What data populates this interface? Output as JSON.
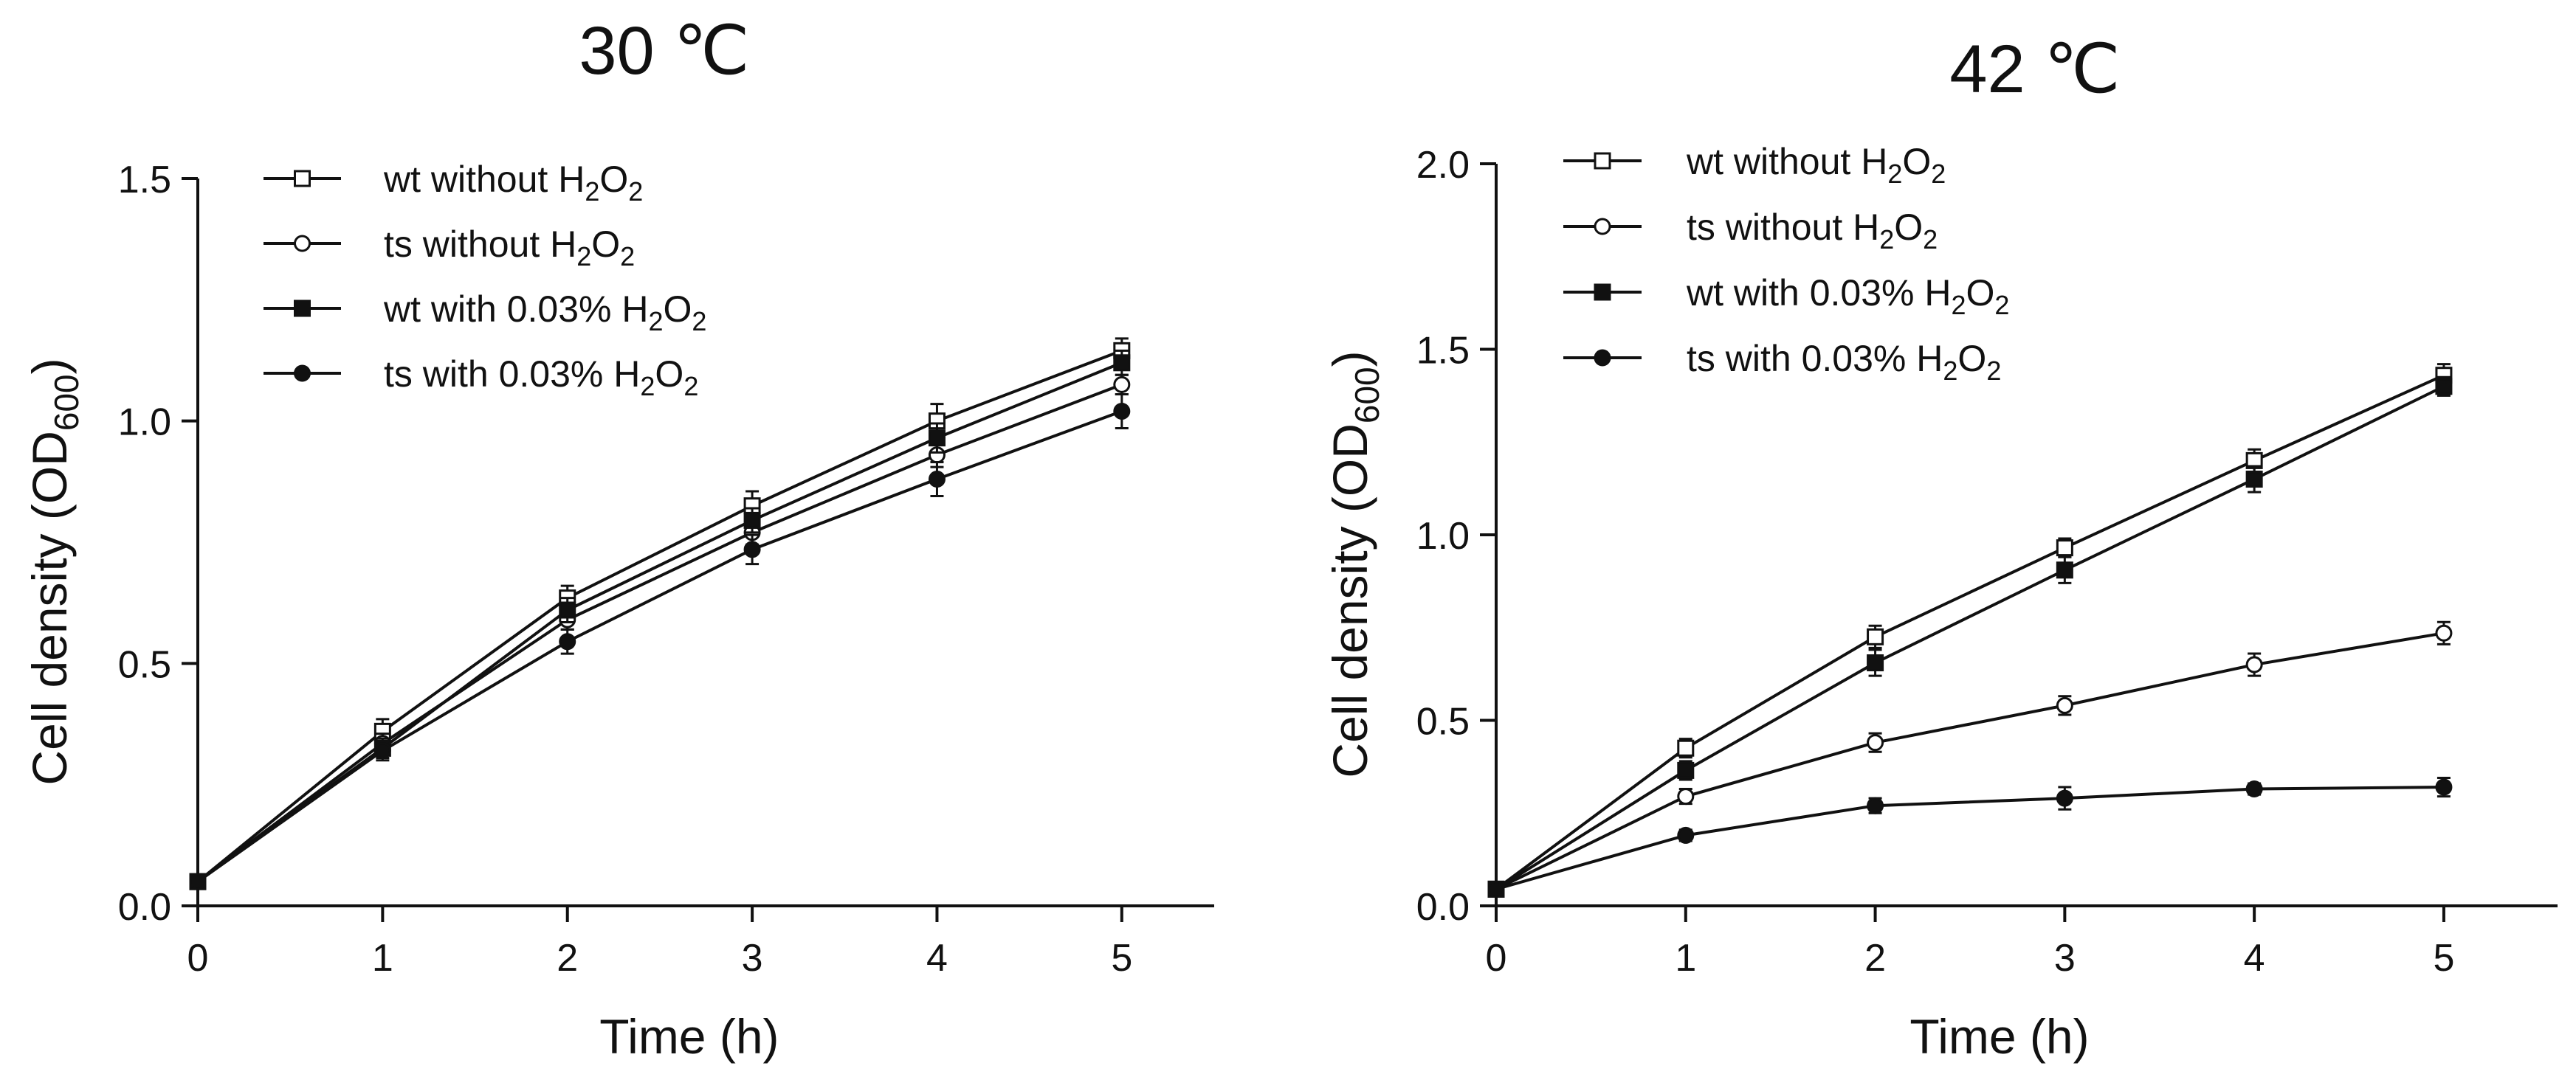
{
  "chart_data": [
    {
      "type": "line",
      "title": "30 ℃",
      "xlabel": "Time (h)",
      "ylabel_main": "Cell density (OD",
      "ylabel_sub": "600",
      "ylabel_close": ")",
      "xlim": [
        0,
        5.5
      ],
      "ylim": [
        0,
        1.5
      ],
      "x_ticks": [
        0,
        1,
        2,
        3,
        4,
        5
      ],
      "y_ticks": [
        0.0,
        0.5,
        1.0,
        1.5
      ],
      "y_tick_labels": [
        "0.0",
        "0.5",
        "1.0",
        "1.5"
      ],
      "legend_position": "top-left",
      "x": [
        0,
        1,
        2,
        3,
        4,
        5
      ],
      "series": [
        {
          "name": "wt without H2O2",
          "label_pre": "wt without H",
          "marker": "square-open",
          "values": [
            0.05,
            0.36,
            0.635,
            0.825,
            1.0,
            1.145
          ],
          "errors": [
            0,
            0.025,
            0.025,
            0.03,
            0.035,
            0.025
          ]
        },
        {
          "name": "ts without H2O2",
          "label_pre": "ts without H",
          "marker": "circle-open",
          "values": [
            0.05,
            0.335,
            0.59,
            0.77,
            0.93,
            1.075
          ],
          "errors": [
            0,
            0.02,
            0.02,
            0.025,
            0.025,
            0.02
          ]
        },
        {
          "name": "wt with 0.03% H2O2",
          "label_pre": "wt with 0.03% H",
          "marker": "square-filled",
          "values": [
            0.05,
            0.325,
            0.61,
            0.795,
            0.965,
            1.12
          ],
          "errors": [
            0,
            0.02,
            0.025,
            0.025,
            0.03,
            0.025
          ]
        },
        {
          "name": "ts with 0.03% H2O2",
          "label_pre": "ts with 0.03% H",
          "marker": "circle-filled",
          "values": [
            0.05,
            0.32,
            0.545,
            0.735,
            0.88,
            1.02
          ],
          "errors": [
            0,
            0.02,
            0.025,
            0.03,
            0.035,
            0.035
          ]
        }
      ]
    },
    {
      "type": "line",
      "title": "42 ℃",
      "xlabel": "Time (h)",
      "ylabel_main": "Cell density (OD",
      "ylabel_sub": "600",
      "ylabel_close": ")",
      "xlim": [
        0,
        5.6
      ],
      "ylim": [
        0,
        2.0
      ],
      "x_ticks": [
        0,
        1,
        2,
        3,
        4,
        5
      ],
      "y_ticks": [
        0.0,
        0.5,
        1.0,
        1.5,
        2.0
      ],
      "y_tick_labels": [
        "0.0",
        "0.5",
        "1.0",
        "1.5",
        "2.0"
      ],
      "legend_position": "top-left",
      "x": [
        0,
        1,
        2,
        3,
        4,
        5
      ],
      "series": [
        {
          "name": "wt without H2O2",
          "label_pre": "wt without H",
          "marker": "square-open",
          "values": [
            0.045,
            0.425,
            0.725,
            0.965,
            1.2,
            1.43
          ],
          "errors": [
            0,
            0.025,
            0.03,
            0.025,
            0.03,
            0.03
          ]
        },
        {
          "name": "ts without H2O2",
          "label_pre": "ts without H",
          "marker": "circle-open",
          "values": [
            0.045,
            0.295,
            0.44,
            0.54,
            0.65,
            0.735
          ],
          "errors": [
            0,
            0.02,
            0.025,
            0.025,
            0.03,
            0.03
          ]
        },
        {
          "name": "wt with 0.03% H2O2",
          "label_pre": "wt with 0.03% H",
          "marker": "square-filled",
          "values": [
            0.045,
            0.365,
            0.655,
            0.905,
            1.15,
            1.4
          ],
          "errors": [
            0,
            0.025,
            0.035,
            0.035,
            0.035,
            0.025
          ]
        },
        {
          "name": "ts with 0.03% H2O2",
          "label_pre": "ts with 0.03% H",
          "marker": "circle-filled",
          "values": [
            0.045,
            0.19,
            0.27,
            0.29,
            0.315,
            0.32
          ],
          "errors": [
            0,
            0.015,
            0.02,
            0.03,
            0.015,
            0.025
          ]
        }
      ]
    }
  ]
}
